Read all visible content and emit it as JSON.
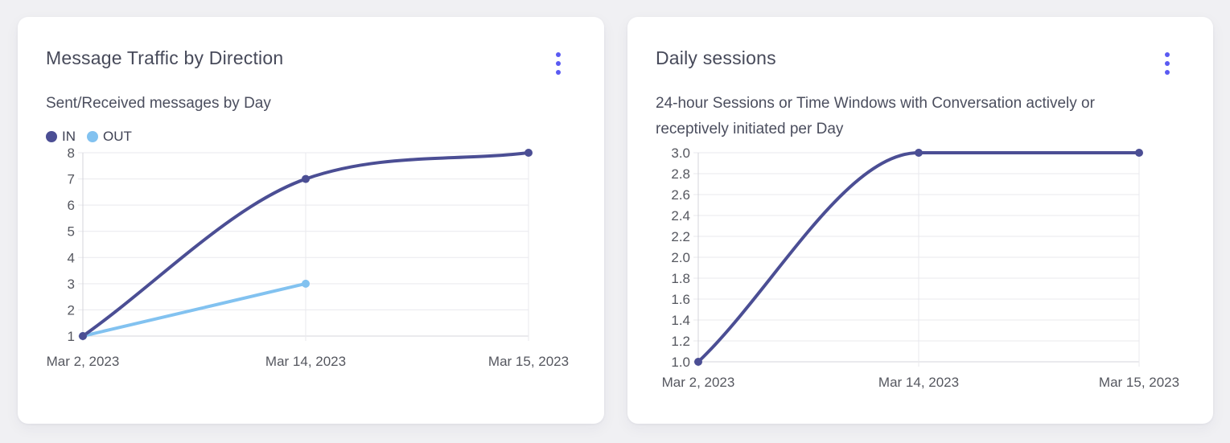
{
  "page": {
    "background": "#f0f0f3"
  },
  "colors": {
    "accent": "#5a5af2",
    "grid": "#e9e9ed",
    "axis": "#d5d5db",
    "title": "#474a5a",
    "subtitle": "#4b4e5e",
    "tick": "#55575f"
  },
  "cards": [
    {
      "title": "Message Traffic by Direction",
      "subtitle": "Sent/Received messages by Day",
      "menu_icon": "kebab-menu"
    },
    {
      "title": "Daily sessions",
      "subtitle": "24-hour Sessions or Time Windows with Conversation actively or receptively initiated per Day",
      "menu_icon": "kebab-menu"
    }
  ],
  "chart_data": [
    {
      "type": "line",
      "title": "Message Traffic by Direction",
      "subtitle": "Sent/Received messages by Day",
      "categories": [
        "Mar 2, 2023",
        "Mar 14, 2023",
        "Mar 15, 2023"
      ],
      "series": [
        {
          "name": "IN",
          "color": "#4b4e94",
          "values": [
            1,
            7,
            8
          ]
        },
        {
          "name": "OUT",
          "color": "#82c2f0",
          "values": [
            1,
            3,
            null
          ]
        }
      ],
      "ylim": [
        1,
        8
      ],
      "yticks": [
        "1",
        "2",
        "3",
        "4",
        "5",
        "6",
        "7",
        "8"
      ],
      "xlabel": "",
      "ylabel": "",
      "grid": true,
      "curve": "monotone",
      "legend_position": "top-left"
    },
    {
      "type": "line",
      "title": "Daily sessions",
      "subtitle": "24-hour Sessions or Time Windows with Conversation actively or receptively initiated per Day",
      "categories": [
        "Mar 2, 2023",
        "Mar 14, 2023",
        "Mar 15, 2023"
      ],
      "series": [
        {
          "name": "Daily sessions",
          "color": "#4b4e94",
          "values": [
            1,
            3,
            3
          ]
        }
      ],
      "ylim": [
        1,
        3
      ],
      "yticks": [
        "1.0",
        "1.2",
        "1.4",
        "1.6",
        "1.8",
        "2.0",
        "2.2",
        "2.4",
        "2.6",
        "2.8",
        "3.0"
      ],
      "xlabel": "",
      "ylabel": "",
      "grid": true,
      "curve": "monotone",
      "legend_position": "none"
    }
  ]
}
